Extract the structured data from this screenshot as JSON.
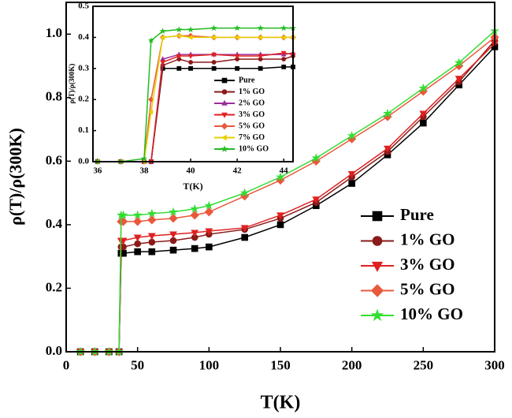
{
  "chart_data": [
    {
      "type": "line",
      "xlabel": "T(K)",
      "ylabel": "ρ(T)/ρ(300K)",
      "x": [
        10,
        20,
        30,
        37,
        38.5,
        40,
        50,
        60,
        75,
        90,
        100,
        125,
        150,
        175,
        200,
        225,
        250,
        275,
        300
      ],
      "xlim": [
        0,
        300
      ],
      "xticks": [
        0,
        50,
        100,
        150,
        200,
        250,
        300
      ],
      "ylim": [
        0,
        1.1
      ],
      "yticks": [
        {
          "value": 0,
          "label": "0.0"
        },
        0.2,
        0.4,
        0.6,
        0.8,
        {
          "value": 1,
          "label": "1.0"
        }
      ],
      "legend": "lower right",
      "series": [
        {
          "name": "Pure",
          "color": "#000000",
          "marker": "square",
          "values": [
            0,
            0,
            0,
            0,
            0.31,
            0.31,
            0.315,
            0.315,
            0.32,
            0.325,
            0.33,
            0.36,
            0.4,
            0.46,
            0.53,
            0.62,
            0.72,
            0.84,
            0.96
          ]
        },
        {
          "name": "1% GO",
          "color": "#8b1a1a",
          "marker": "circle",
          "values": [
            0,
            0,
            0,
            0,
            0.33,
            0.33,
            0.34,
            0.345,
            0.35,
            0.36,
            0.37,
            0.385,
            0.42,
            0.47,
            0.55,
            0.63,
            0.74,
            0.85,
            0.98
          ]
        },
        {
          "name": "3% GO",
          "color": "#e02020",
          "marker": "triangle-down",
          "values": [
            0,
            0,
            0,
            0,
            0.35,
            0.35,
            0.36,
            0.365,
            0.37,
            0.375,
            0.38,
            0.39,
            0.43,
            0.48,
            0.56,
            0.64,
            0.75,
            0.86,
            0.97
          ]
        },
        {
          "name": "5% GO",
          "color": "#e8593c",
          "marker": "diamond",
          "values": [
            0,
            0,
            0,
            0,
            0.41,
            0.41,
            0.41,
            0.415,
            0.42,
            0.43,
            0.44,
            0.49,
            0.54,
            0.6,
            0.67,
            0.74,
            0.82,
            0.9,
            0.99
          ]
        },
        {
          "name": "10% GO",
          "color": "#33dd33",
          "marker": "star",
          "values": [
            0,
            0,
            0,
            0,
            0.43,
            0.43,
            0.43,
            0.435,
            0.44,
            0.45,
            0.46,
            0.5,
            0.55,
            0.61,
            0.68,
            0.75,
            0.83,
            0.91,
            1.01
          ]
        }
      ]
    },
    {
      "type": "line",
      "xlabel": "T(K)",
      "ylabel": "ρ(T)/ρ(300K)",
      "x": [
        36,
        37,
        38,
        38.3,
        38.8,
        39.5,
        40,
        41,
        42,
        43,
        44,
        44.4
      ],
      "xlim": [
        35.8,
        44.4
      ],
      "xticks": [
        36,
        38,
        40,
        42,
        44
      ],
      "ylim": [
        0,
        0.5
      ],
      "yticks": [
        {
          "value": 0,
          "label": "0.0"
        },
        0.1,
        0.2,
        0.3,
        0.4,
        0.5
      ],
      "legend": "center right",
      "series": [
        {
          "name": "Pure",
          "color": "#000000",
          "marker": "square",
          "values": [
            0,
            0,
            0,
            0,
            0.3,
            0.3,
            0.3,
            0.3,
            0.3,
            0.3,
            0.305,
            0.305
          ]
        },
        {
          "name": "1% GO",
          "color": "#8b1a1a",
          "marker": "circle",
          "values": [
            0,
            0,
            0,
            0,
            0.31,
            0.33,
            0.32,
            0.32,
            0.33,
            0.33,
            0.33,
            0.34
          ]
        },
        {
          "name": "2% GO",
          "color": "#9b2d9b",
          "marker": "triangle-up",
          "values": [
            0,
            0,
            0,
            0,
            0.33,
            0.345,
            0.345,
            0.345,
            0.345,
            0.345,
            0.345,
            0.35
          ]
        },
        {
          "name": "3% GO",
          "color": "#e02020",
          "marker": "triangle-down",
          "values": [
            0,
            0,
            0,
            0,
            0.32,
            0.34,
            0.34,
            0.345,
            0.34,
            0.34,
            0.35,
            0.345
          ]
        },
        {
          "name": "5% GO",
          "color": "#e8593c",
          "marker": "diamond",
          "values": [
            0,
            0,
            0,
            0.2,
            0.4,
            0.405,
            0.405,
            0.4,
            0.4,
            0.4,
            0.4,
            0.4
          ]
        },
        {
          "name": "7% GO",
          "color": "#e8d000",
          "marker": "triangle-left",
          "values": [
            0,
            0,
            0,
            0.16,
            0.4,
            0.405,
            0.4,
            0.4,
            0.4,
            0.4,
            0.4,
            0.4
          ]
        },
        {
          "name": "10% GO",
          "color": "#22bb22",
          "marker": "star",
          "values": [
            0,
            0,
            0.01,
            0.39,
            0.42,
            0.425,
            0.425,
            0.43,
            0.43,
            0.43,
            0.43,
            0.43
          ]
        }
      ]
    }
  ]
}
